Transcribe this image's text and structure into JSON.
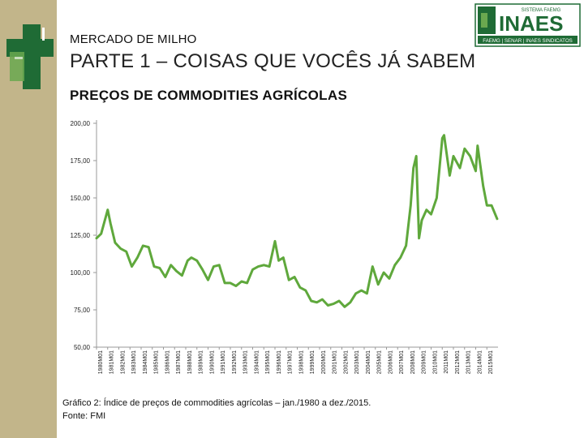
{
  "slide": {
    "kicker": "MERCADO DE MILHO",
    "title": "PARTE 1 – COISAS QUE VOCÊS JÁ SABEM"
  },
  "logo": {
    "top_text": "SISTEMA FAEMG",
    "main_text": "INAES",
    "bottom_text": "FAEMG | SENAR | INAES  SINDICATOS"
  },
  "colors": {
    "line": "#5fa83c",
    "sidebar": "#c2b58a",
    "logo_green": "#1f6b35"
  },
  "chart_data": {
    "type": "line",
    "title": "PREÇOS DE COMMODITIES AGRÍCOLAS",
    "xlabel": "",
    "ylabel": "",
    "ylim": [
      50,
      200
    ],
    "yticks": [
      50,
      75,
      100,
      125,
      150,
      175,
      200
    ],
    "ytick_labels": [
      "50,00",
      "75,00",
      "100,00",
      "125,00",
      "150,00",
      "175,00",
      "200,00"
    ],
    "xticks": [
      "1980M01",
      "1981M01",
      "1982M01",
      "1983M01",
      "1984M01",
      "1985M01",
      "1986M01",
      "1987M01",
      "1988M01",
      "1989M01",
      "1990M01",
      "1991M01",
      "1992M01",
      "1993M01",
      "1994M01",
      "1995M01",
      "1996M01",
      "1997M01",
      "1998M01",
      "1999M01",
      "2000M01",
      "2001M01",
      "2002M01",
      "2003M01",
      "2004M01",
      "2005M01",
      "2006M01",
      "2007M01",
      "2008M01",
      "2009M01",
      "2010M01",
      "2011M01",
      "2012M01",
      "2013M01",
      "2014M01",
      "2015M01"
    ],
    "series": [
      {
        "x": [
          "1980M01",
          "1980M06",
          "1981M01",
          "1981M04",
          "1981M09",
          "1982M03",
          "1982M09",
          "1983M03",
          "1983M09",
          "1984M03",
          "1984M09",
          "1985M03",
          "1985M09",
          "1986M03",
          "1986M09",
          "1987M03",
          "1987M09",
          "1988M03",
          "1988M07",
          "1989M01",
          "1989M07",
          "1990M01",
          "1990M07",
          "1991M01",
          "1991M07",
          "1992M01",
          "1992M07",
          "1993M01",
          "1993M07",
          "1994M01",
          "1994M07",
          "1995M01",
          "1995M07",
          "1996M01",
          "1996M05",
          "1996M10",
          "1997M04",
          "1997M10",
          "1998M04",
          "1998M10",
          "1999M04",
          "1999M10",
          "2000M04",
          "2000M10",
          "2001M04",
          "2001M10",
          "2002M04",
          "2002M10",
          "2003M04",
          "2003M10",
          "2004M04",
          "2004M10",
          "2005M04",
          "2005M10",
          "2006M04",
          "2006M10",
          "2007M04",
          "2007M10",
          "2008M03",
          "2008M06",
          "2008M09",
          "2008M12",
          "2009M03",
          "2009M08",
          "2010M01",
          "2010M07",
          "2011M01",
          "2011M03",
          "2011M09",
          "2012M01",
          "2012M08",
          "2013M01",
          "2013M07",
          "2014M01",
          "2014M03",
          "2014M09",
          "2015M01",
          "2015M06",
          "2015M12"
        ],
        "values": [
          123,
          126,
          142,
          133,
          120,
          116,
          114,
          104,
          110,
          118,
          117,
          104,
          103,
          97,
          105,
          101,
          98,
          108,
          110,
          108,
          102,
          95,
          104,
          105,
          93,
          93,
          91,
          94,
          93,
          102,
          104,
          105,
          104,
          121,
          108,
          110,
          95,
          97,
          90,
          88,
          81,
          80,
          82,
          78,
          79,
          81,
          77,
          80,
          86,
          88,
          86,
          104,
          92,
          100,
          96,
          105,
          110,
          118,
          145,
          170,
          178,
          123,
          135,
          142,
          139,
          150,
          190,
          192,
          165,
          178,
          170,
          183,
          178,
          168,
          185,
          158,
          145,
          145,
          136
        ]
      }
    ]
  },
  "caption": "Gráfico 2: Índice de preços de commodities agrícolas – jan./1980 a dez./2015.",
  "source": "Fonte: FMI"
}
